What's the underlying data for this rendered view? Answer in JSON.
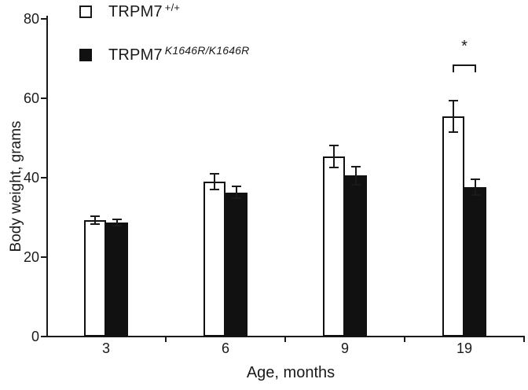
{
  "figure": {
    "background": "#ffffff",
    "ink_color": "#1a1a1a",
    "bar_fill_dark": "#111111",
    "bar_fill_light": "#ffffff"
  },
  "legend": {
    "items": [
      {
        "swatch": "open-square",
        "label_base": "TRPM7",
        "label_sup": "+/+",
        "sup_italic": false
      },
      {
        "swatch": "filled-square",
        "label_base": "TRPM7",
        "label_sup": "K1646R/K1646R",
        "sup_italic": true
      }
    ]
  },
  "chart_data": {
    "type": "bar",
    "title": "",
    "xlabel": "Age, months",
    "ylabel": "Body weight, grams",
    "categories": [
      "3",
      "6",
      "9",
      "19"
    ],
    "series": [
      {
        "name": "TRPM7 +/+",
        "style": "open",
        "values": [
          29.3,
          39.0,
          45.3,
          55.5
        ],
        "errors": [
          1.0,
          2.0,
          2.8,
          4.0
        ]
      },
      {
        "name": "TRPM7 K1646R/K1646R",
        "style": "filled",
        "values": [
          28.8,
          36.3,
          40.5,
          37.7
        ],
        "errors": [
          0.8,
          1.5,
          2.2,
          2.0
        ]
      }
    ],
    "ylim": [
      0,
      80
    ],
    "yticks": [
      0,
      20,
      40,
      60,
      80
    ],
    "grid": false,
    "legend_position": "top-left",
    "annotations": [
      {
        "type": "significance-bracket",
        "category": "19",
        "label": "*"
      }
    ]
  }
}
